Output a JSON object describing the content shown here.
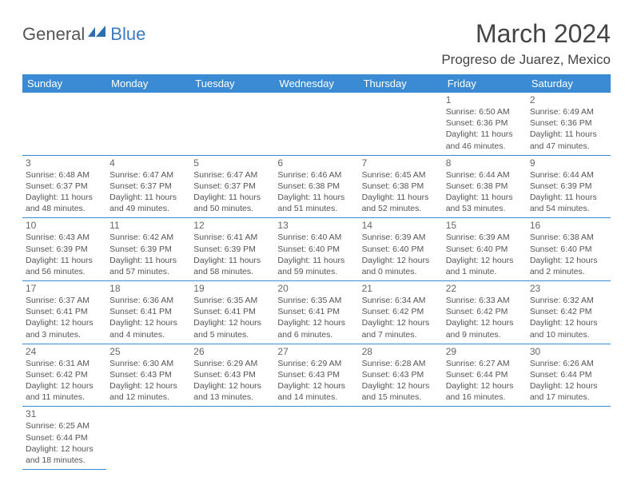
{
  "brand": {
    "general": "General",
    "blue": "Blue"
  },
  "title": "March 2024",
  "location": "Progreso de Juarez, Mexico",
  "colors": {
    "headerBg": "#3b8bd4",
    "headerText": "#ffffff",
    "brandBlue": "#3b7bc4",
    "bodyText": "#555555",
    "dayNumText": "#666666",
    "borderColor": "#3b8bd4",
    "pageBg": "#ffffff"
  },
  "typography": {
    "titleFontSize": 32,
    "locationFontSize": 17,
    "headerFontSize": 13,
    "dayNumFontSize": 12,
    "bodyFontSize": 10.5
  },
  "dayHeaders": [
    "Sunday",
    "Monday",
    "Tuesday",
    "Wednesday",
    "Thursday",
    "Friday",
    "Saturday"
  ],
  "weeks": [
    [
      null,
      null,
      null,
      null,
      null,
      {
        "n": "1",
        "sr": "6:50 AM",
        "ss": "6:36 PM",
        "dl": "11 hours and 46 minutes."
      },
      {
        "n": "2",
        "sr": "6:49 AM",
        "ss": "6:36 PM",
        "dl": "11 hours and 47 minutes."
      }
    ],
    [
      {
        "n": "3",
        "sr": "6:48 AM",
        "ss": "6:37 PM",
        "dl": "11 hours and 48 minutes."
      },
      {
        "n": "4",
        "sr": "6:47 AM",
        "ss": "6:37 PM",
        "dl": "11 hours and 49 minutes."
      },
      {
        "n": "5",
        "sr": "6:47 AM",
        "ss": "6:37 PM",
        "dl": "11 hours and 50 minutes."
      },
      {
        "n": "6",
        "sr": "6:46 AM",
        "ss": "6:38 PM",
        "dl": "11 hours and 51 minutes."
      },
      {
        "n": "7",
        "sr": "6:45 AM",
        "ss": "6:38 PM",
        "dl": "11 hours and 52 minutes."
      },
      {
        "n": "8",
        "sr": "6:44 AM",
        "ss": "6:38 PM",
        "dl": "11 hours and 53 minutes."
      },
      {
        "n": "9",
        "sr": "6:44 AM",
        "ss": "6:39 PM",
        "dl": "11 hours and 54 minutes."
      }
    ],
    [
      {
        "n": "10",
        "sr": "6:43 AM",
        "ss": "6:39 PM",
        "dl": "11 hours and 56 minutes."
      },
      {
        "n": "11",
        "sr": "6:42 AM",
        "ss": "6:39 PM",
        "dl": "11 hours and 57 minutes."
      },
      {
        "n": "12",
        "sr": "6:41 AM",
        "ss": "6:39 PM",
        "dl": "11 hours and 58 minutes."
      },
      {
        "n": "13",
        "sr": "6:40 AM",
        "ss": "6:40 PM",
        "dl": "11 hours and 59 minutes."
      },
      {
        "n": "14",
        "sr": "6:39 AM",
        "ss": "6:40 PM",
        "dl": "12 hours and 0 minutes."
      },
      {
        "n": "15",
        "sr": "6:39 AM",
        "ss": "6:40 PM",
        "dl": "12 hours and 1 minute."
      },
      {
        "n": "16",
        "sr": "6:38 AM",
        "ss": "6:40 PM",
        "dl": "12 hours and 2 minutes."
      }
    ],
    [
      {
        "n": "17",
        "sr": "6:37 AM",
        "ss": "6:41 PM",
        "dl": "12 hours and 3 minutes."
      },
      {
        "n": "18",
        "sr": "6:36 AM",
        "ss": "6:41 PM",
        "dl": "12 hours and 4 minutes."
      },
      {
        "n": "19",
        "sr": "6:35 AM",
        "ss": "6:41 PM",
        "dl": "12 hours and 5 minutes."
      },
      {
        "n": "20",
        "sr": "6:35 AM",
        "ss": "6:41 PM",
        "dl": "12 hours and 6 minutes."
      },
      {
        "n": "21",
        "sr": "6:34 AM",
        "ss": "6:42 PM",
        "dl": "12 hours and 7 minutes."
      },
      {
        "n": "22",
        "sr": "6:33 AM",
        "ss": "6:42 PM",
        "dl": "12 hours and 9 minutes."
      },
      {
        "n": "23",
        "sr": "6:32 AM",
        "ss": "6:42 PM",
        "dl": "12 hours and 10 minutes."
      }
    ],
    [
      {
        "n": "24",
        "sr": "6:31 AM",
        "ss": "6:42 PM",
        "dl": "12 hours and 11 minutes."
      },
      {
        "n": "25",
        "sr": "6:30 AM",
        "ss": "6:43 PM",
        "dl": "12 hours and 12 minutes."
      },
      {
        "n": "26",
        "sr": "6:29 AM",
        "ss": "6:43 PM",
        "dl": "12 hours and 13 minutes."
      },
      {
        "n": "27",
        "sr": "6:29 AM",
        "ss": "6:43 PM",
        "dl": "12 hours and 14 minutes."
      },
      {
        "n": "28",
        "sr": "6:28 AM",
        "ss": "6:43 PM",
        "dl": "12 hours and 15 minutes."
      },
      {
        "n": "29",
        "sr": "6:27 AM",
        "ss": "6:44 PM",
        "dl": "12 hours and 16 minutes."
      },
      {
        "n": "30",
        "sr": "6:26 AM",
        "ss": "6:44 PM",
        "dl": "12 hours and 17 minutes."
      }
    ],
    [
      {
        "n": "31",
        "sr": "6:25 AM",
        "ss": "6:44 PM",
        "dl": "12 hours and 18 minutes."
      },
      null,
      null,
      null,
      null,
      null,
      null
    ]
  ],
  "labels": {
    "sunrise": "Sunrise:",
    "sunset": "Sunset:",
    "daylight": "Daylight:"
  }
}
